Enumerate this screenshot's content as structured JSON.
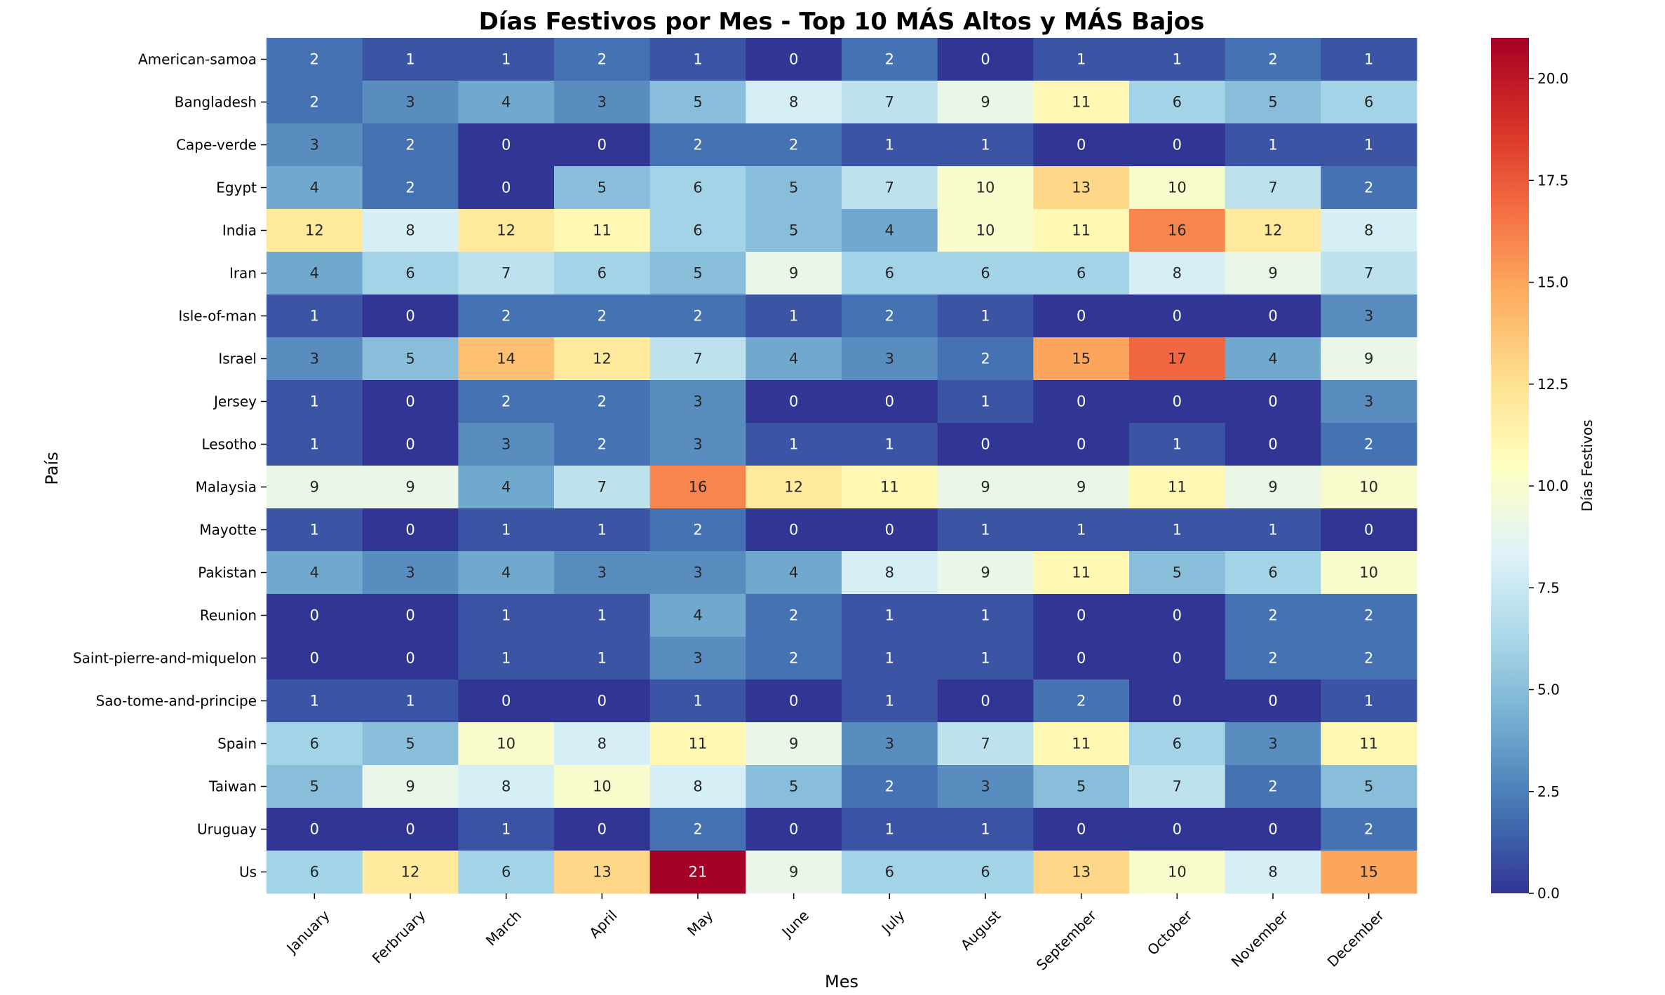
{
  "chart_data": {
    "type": "heatmap",
    "title": "Días Festivos por Mes - Top 10 MÁS Altos y MÁS Bajos",
    "xlabel": "Mes",
    "ylabel": "País",
    "colorbar_label": "Días Festivos",
    "colormap": "RdYlBu_r",
    "colorbar_range": [
      0,
      21
    ],
    "colorbar_ticks": [
      "0.0",
      "2.5",
      "5.0",
      "7.5",
      "10.0",
      "12.5",
      "15.0",
      "17.5",
      "20.0"
    ],
    "x_categories": [
      "January",
      "Ferbruary",
      "March",
      "April",
      "May",
      "June",
      "July",
      "August",
      "September",
      "October",
      "November",
      "December"
    ],
    "y_categories": [
      "American-samoa",
      "Bangladesh",
      "Cape-verde",
      "Egypt",
      "India",
      "Iran",
      "Isle-of-man",
      "Israel",
      "Jersey",
      "Lesotho",
      "Malaysia",
      "Mayotte",
      "Pakistan",
      "Reunion",
      "Saint-pierre-and-miquelon",
      "Sao-tome-and-principe",
      "Spain",
      "Taiwan",
      "Uruguay",
      "Us"
    ],
    "values": [
      [
        2,
        1,
        1,
        2,
        1,
        0,
        2,
        0,
        1,
        1,
        2,
        1
      ],
      [
        2,
        3,
        4,
        3,
        5,
        8,
        7,
        9,
        11,
        6,
        5,
        6
      ],
      [
        3,
        2,
        0,
        0,
        2,
        2,
        1,
        1,
        0,
        0,
        1,
        1
      ],
      [
        4,
        2,
        0,
        5,
        6,
        5,
        7,
        10,
        13,
        10,
        7,
        2
      ],
      [
        12,
        8,
        12,
        11,
        6,
        5,
        4,
        10,
        11,
        16,
        12,
        8
      ],
      [
        4,
        6,
        7,
        6,
        5,
        9,
        6,
        6,
        6,
        8,
        9,
        7
      ],
      [
        1,
        0,
        2,
        2,
        2,
        1,
        2,
        1,
        0,
        0,
        0,
        3
      ],
      [
        3,
        5,
        14,
        12,
        7,
        4,
        3,
        2,
        15,
        17,
        4,
        9
      ],
      [
        1,
        0,
        2,
        2,
        3,
        0,
        0,
        1,
        0,
        0,
        0,
        3
      ],
      [
        1,
        0,
        3,
        2,
        3,
        1,
        1,
        0,
        0,
        1,
        0,
        2
      ],
      [
        9,
        9,
        4,
        7,
        16,
        12,
        11,
        9,
        9,
        11,
        9,
        10
      ],
      [
        1,
        0,
        1,
        1,
        2,
        0,
        0,
        1,
        1,
        1,
        1,
        0
      ],
      [
        4,
        3,
        4,
        3,
        3,
        4,
        8,
        9,
        11,
        5,
        6,
        10
      ],
      [
        0,
        0,
        1,
        1,
        4,
        2,
        1,
        1,
        0,
        0,
        2,
        2
      ],
      [
        0,
        0,
        1,
        1,
        3,
        2,
        1,
        1,
        0,
        0,
        2,
        2
      ],
      [
        1,
        1,
        0,
        0,
        1,
        0,
        1,
        0,
        2,
        0,
        0,
        1
      ],
      [
        6,
        5,
        10,
        8,
        11,
        9,
        3,
        7,
        11,
        6,
        3,
        11
      ],
      [
        5,
        9,
        8,
        10,
        8,
        5,
        2,
        3,
        5,
        7,
        2,
        5
      ],
      [
        0,
        0,
        1,
        0,
        2,
        0,
        1,
        1,
        0,
        0,
        0,
        2
      ],
      [
        6,
        12,
        6,
        13,
        21,
        9,
        6,
        6,
        13,
        10,
        8,
        15
      ]
    ]
  }
}
